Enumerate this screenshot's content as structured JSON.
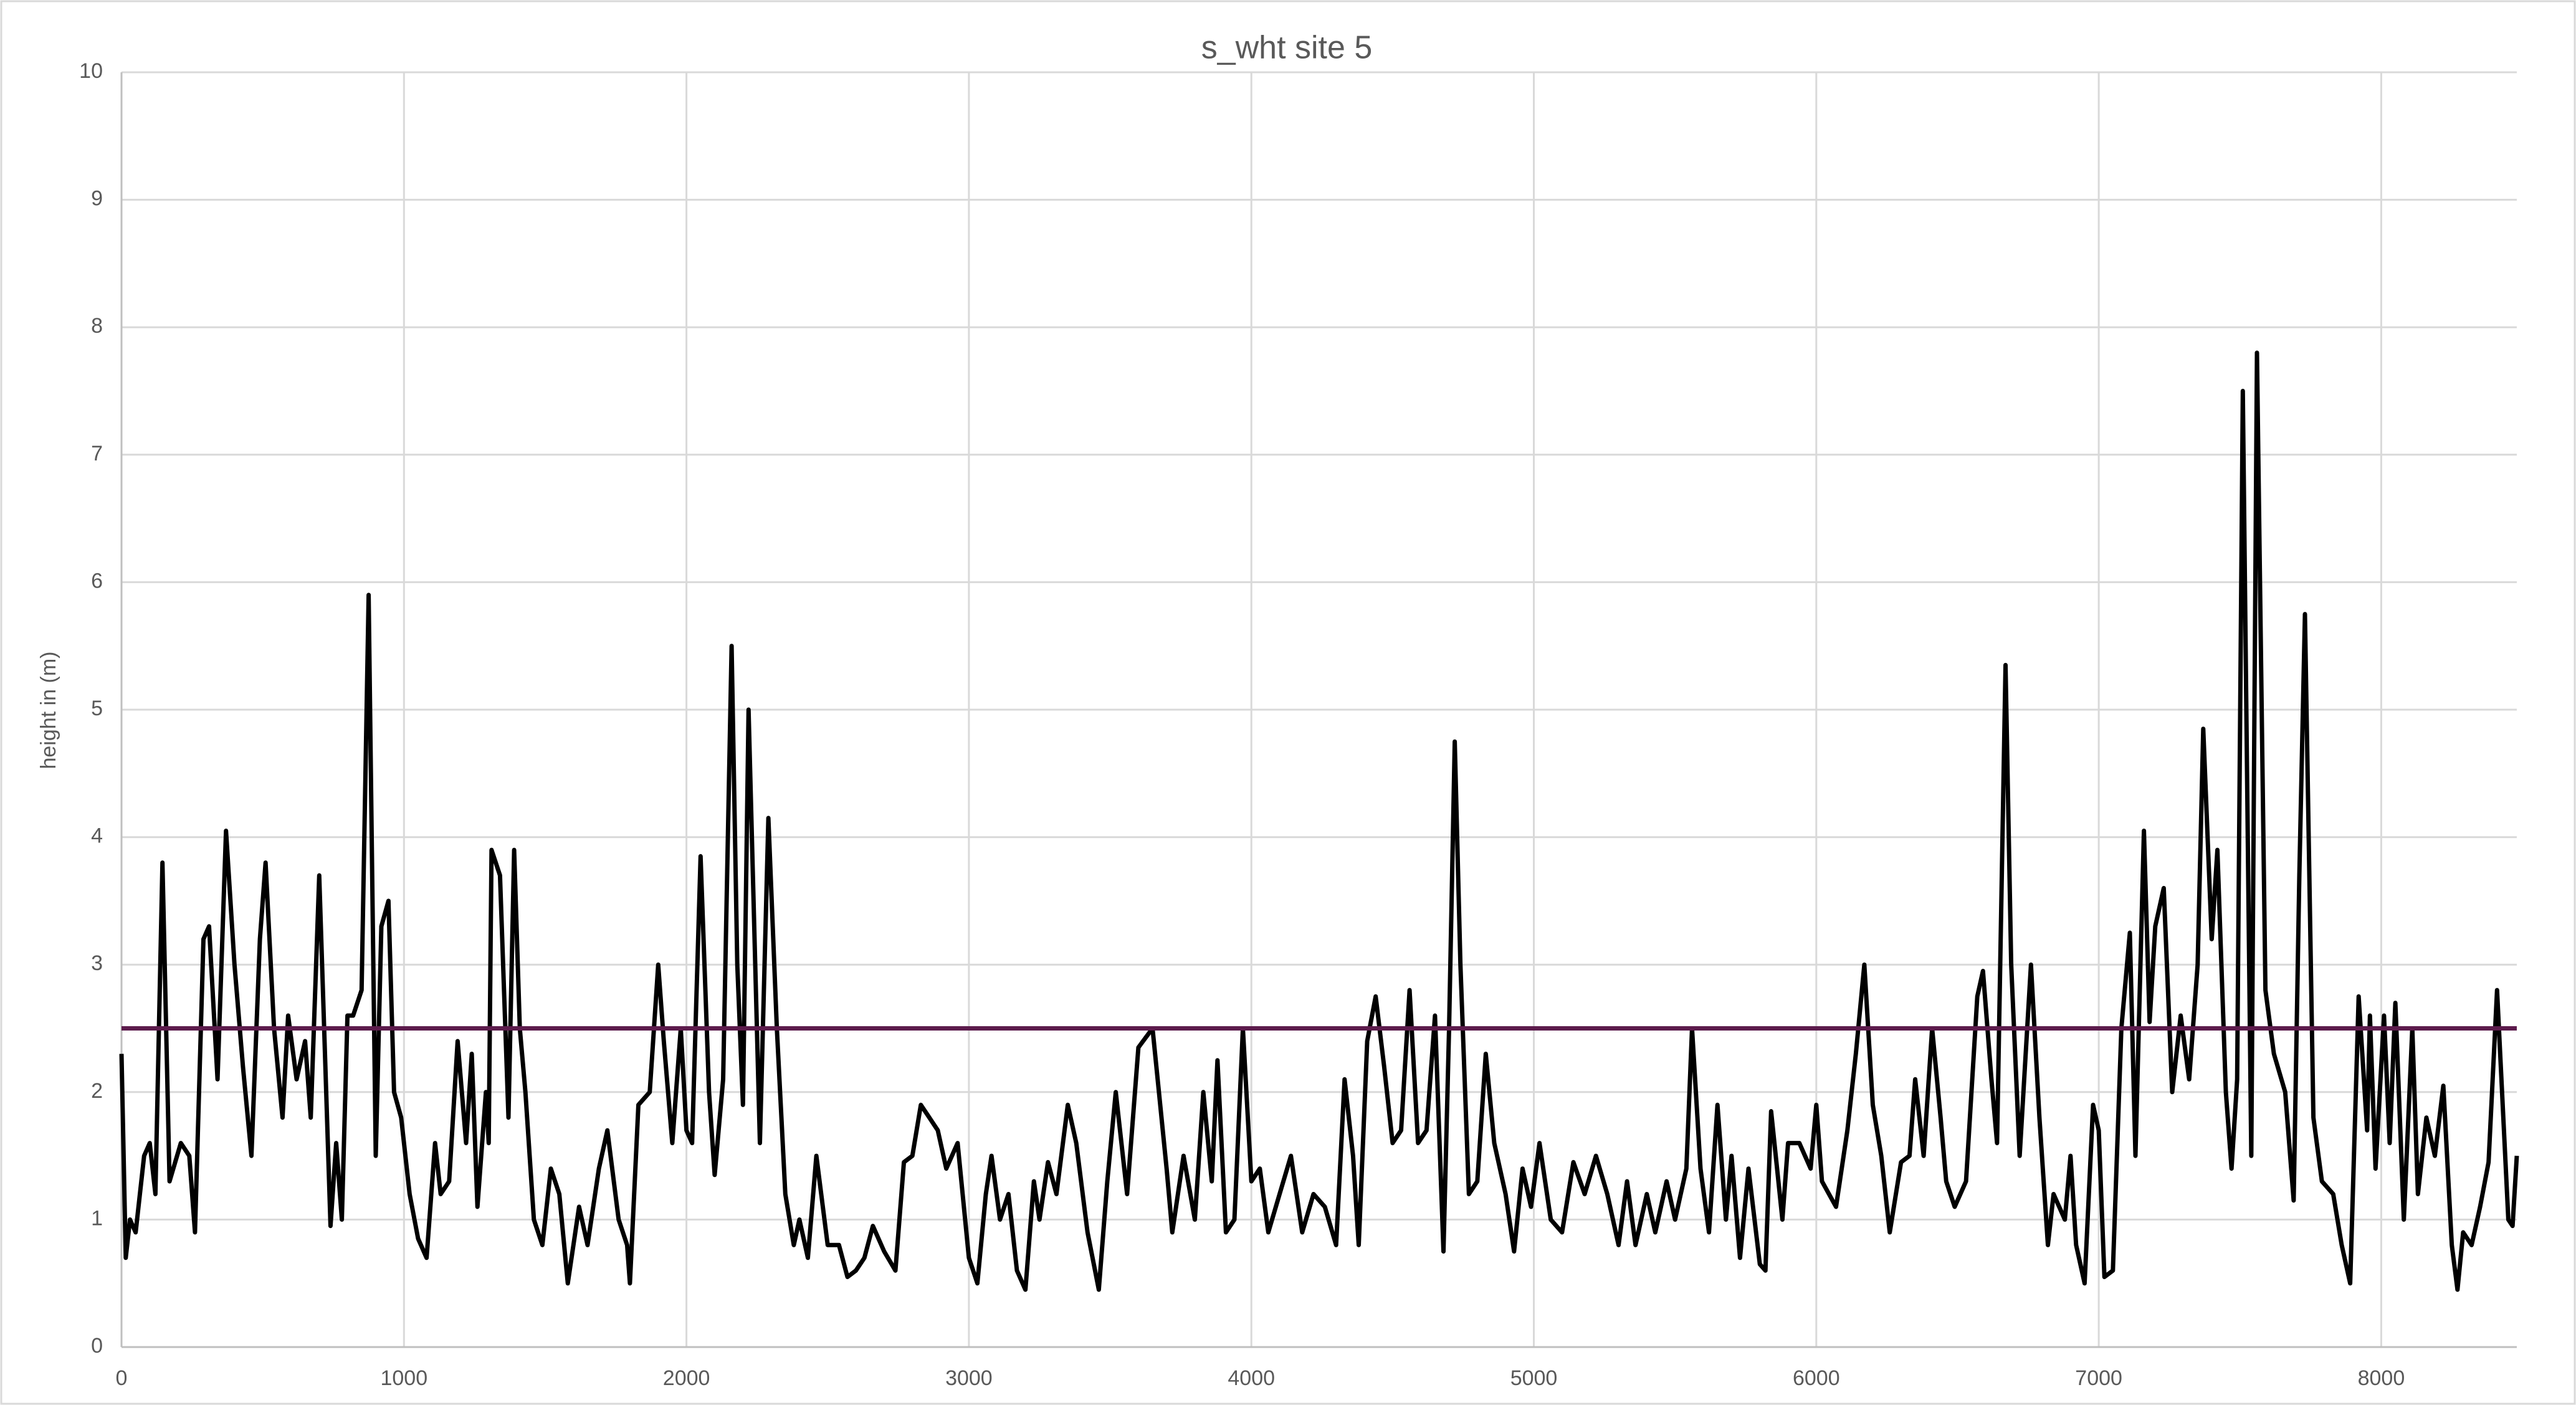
{
  "chart_data": {
    "type": "line",
    "title": "s_wht site 5",
    "y_label": "height in (m)",
    "xlim": [
      0,
      8480
    ],
    "xticks": [
      0,
      1000,
      2000,
      3000,
      4000,
      5000,
      6000,
      7000,
      8000
    ],
    "ylim": [
      0,
      10
    ],
    "yticks": [
      0,
      1,
      2,
      3,
      4,
      5,
      6,
      7,
      8,
      9,
      10
    ],
    "grid": true,
    "series": [
      {
        "color": "#000000",
        "x": [
          0,
          15,
          30,
          50,
          80,
          100,
          120,
          145,
          170,
          210,
          240,
          260,
          290,
          310,
          340,
          370,
          400,
          430,
          460,
          490,
          510,
          540,
          570,
          590,
          620,
          650,
          670,
          700,
          740,
          760,
          780,
          800,
          820,
          850,
          875,
          900,
          920,
          945,
          965,
          990,
          1020,
          1050,
          1080,
          1110,
          1130,
          1160,
          1190,
          1220,
          1240,
          1260,
          1290,
          1300,
          1310,
          1340,
          1370,
          1390,
          1410,
          1430,
          1460,
          1490,
          1520,
          1550,
          1580,
          1620,
          1650,
          1690,
          1720,
          1760,
          1790,
          1800,
          1830,
          1870,
          1900,
          1920,
          1950,
          1980,
          2000,
          2020,
          2050,
          2080,
          2100,
          2130,
          2160,
          2180,
          2200,
          2220,
          2260,
          2290,
          2320,
          2350,
          2380,
          2400,
          2430,
          2460,
          2500,
          2540,
          2570,
          2600,
          2630,
          2660,
          2700,
          2740,
          2770,
          2800,
          2830,
          2860,
          2890,
          2920,
          2960,
          3000,
          3030,
          3060,
          3080,
          3110,
          3140,
          3170,
          3200,
          3230,
          3250,
          3280,
          3310,
          3350,
          3380,
          3420,
          3460,
          3490,
          3520,
          3560,
          3600,
          3650,
          3700,
          3720,
          3760,
          3800,
          3830,
          3860,
          3880,
          3910,
          3940,
          3970,
          4000,
          4030,
          4060,
          4100,
          4140,
          4180,
          4220,
          4260,
          4300,
          4330,
          4360,
          4380,
          4410,
          4440,
          4470,
          4500,
          4530,
          4560,
          4590,
          4620,
          4650,
          4680,
          4700,
          4720,
          4740,
          4770,
          4800,
          4830,
          4860,
          4900,
          4930,
          4960,
          4990,
          5020,
          5060,
          5100,
          5140,
          5180,
          5220,
          5260,
          5300,
          5330,
          5360,
          5400,
          5430,
          5470,
          5500,
          5540,
          5560,
          5590,
          5620,
          5650,
          5680,
          5700,
          5730,
          5760,
          5800,
          5820,
          5840,
          5880,
          5900,
          5940,
          5980,
          6000,
          6020,
          6070,
          6110,
          6140,
          6170,
          6200,
          6230,
          6260,
          6300,
          6330,
          6350,
          6380,
          6410,
          6440,
          6460,
          6490,
          6530,
          6570,
          6590,
          6620,
          6640,
          6670,
          6690,
          6720,
          6760,
          6790,
          6820,
          6840,
          6880,
          6900,
          6920,
          6950,
          6980,
          7000,
          7020,
          7050,
          7080,
          7110,
          7130,
          7160,
          7180,
          7200,
          7230,
          7260,
          7290,
          7320,
          7350,
          7370,
          7400,
          7420,
          7450,
          7470,
          7490,
          7510,
          7540,
          7560,
          7590,
          7620,
          7660,
          7690,
          7710,
          7730,
          7760,
          7790,
          7830,
          7860,
          7890,
          7920,
          7950,
          7960,
          7980,
          8010,
          8030,
          8050,
          8080,
          8110,
          8130,
          8160,
          8190,
          8220,
          8250,
          8270,
          8290,
          8320,
          8350,
          8380,
          8410,
          8450,
          8465,
          8480
        ],
        "values": [
          2.3,
          0.7,
          1.0,
          0.9,
          1.5,
          1.6,
          1.2,
          3.8,
          1.3,
          1.6,
          1.5,
          0.9,
          3.2,
          3.3,
          2.1,
          4.05,
          3.0,
          2.2,
          1.5,
          3.2,
          3.8,
          2.5,
          1.8,
          2.6,
          2.1,
          2.4,
          1.8,
          3.7,
          0.95,
          1.6,
          1.0,
          2.6,
          2.6,
          2.8,
          5.9,
          1.5,
          3.3,
          3.5,
          2.0,
          1.8,
          1.2,
          0.85,
          0.7,
          1.6,
          1.2,
          1.3,
          2.4,
          1.6,
          2.3,
          1.1,
          2.0,
          1.6,
          3.9,
          3.7,
          1.8,
          3.9,
          2.5,
          2.0,
          1.0,
          0.8,
          1.4,
          1.2,
          0.5,
          1.1,
          0.8,
          1.4,
          1.7,
          1.0,
          0.8,
          0.5,
          1.9,
          2.0,
          3.0,
          2.4,
          1.6,
          2.5,
          1.7,
          1.6,
          3.85,
          2.0,
          1.35,
          2.1,
          5.5,
          3.0,
          1.9,
          5.0,
          1.6,
          4.15,
          2.5,
          1.2,
          0.8,
          1.0,
          0.7,
          1.5,
          0.8,
          0.8,
          0.55,
          0.6,
          0.7,
          0.95,
          0.75,
          0.6,
          1.45,
          1.5,
          1.9,
          1.8,
          1.7,
          1.4,
          1.6,
          0.7,
          0.5,
          1.2,
          1.5,
          1.0,
          1.2,
          0.6,
          0.45,
          1.3,
          1.0,
          1.45,
          1.2,
          1.9,
          1.6,
          0.9,
          0.45,
          1.3,
          2.0,
          1.2,
          2.35,
          2.5,
          1.4,
          0.9,
          1.5,
          1.0,
          2.0,
          1.3,
          2.25,
          0.9,
          1.0,
          2.5,
          1.3,
          1.4,
          0.9,
          1.2,
          1.5,
          0.9,
          1.2,
          1.1,
          0.8,
          2.1,
          1.5,
          0.8,
          2.4,
          2.75,
          2.2,
          1.6,
          1.7,
          2.8,
          1.6,
          1.7,
          2.6,
          0.75,
          2.5,
          4.75,
          3.0,
          1.2,
          1.3,
          2.3,
          1.6,
          1.2,
          0.75,
          1.4,
          1.1,
          1.6,
          1.0,
          0.9,
          1.45,
          1.2,
          1.5,
          1.2,
          0.8,
          1.3,
          0.8,
          1.2,
          0.9,
          1.3,
          1.0,
          1.4,
          2.5,
          1.4,
          0.9,
          1.9,
          1.0,
          1.5,
          0.7,
          1.4,
          0.65,
          0.6,
          1.85,
          1.0,
          1.6,
          1.6,
          1.4,
          1.9,
          1.3,
          1.1,
          1.7,
          2.3,
          3.0,
          1.9,
          1.5,
          0.9,
          1.45,
          1.5,
          2.1,
          1.5,
          2.5,
          1.8,
          1.3,
          1.1,
          1.3,
          2.75,
          2.95,
          2.1,
          1.6,
          5.35,
          3.0,
          1.5,
          3.0,
          1.8,
          0.8,
          1.2,
          1.0,
          1.5,
          0.8,
          0.5,
          1.9,
          1.7,
          0.55,
          0.6,
          2.5,
          3.25,
          1.5,
          4.05,
          2.55,
          3.3,
          3.6,
          2.0,
          2.6,
          2.1,
          3.0,
          4.85,
          3.2,
          3.9,
          2.0,
          1.4,
          2.1,
          7.5,
          1.5,
          7.8,
          2.8,
          2.3,
          2.0,
          1.15,
          3.7,
          5.75,
          1.8,
          1.3,
          1.2,
          0.8,
          0.5,
          2.75,
          1.7,
          2.6,
          1.4,
          2.6,
          1.6,
          2.7,
          1.0,
          2.5,
          1.2,
          1.8,
          1.5,
          2.05,
          0.8,
          0.45,
          0.9,
          0.8,
          1.1,
          1.45,
          2.8,
          1.0,
          0.95,
          1.5
        ]
      },
      {
        "color": "#5c1b4c",
        "x": [
          0,
          8480
        ],
        "values": [
          2.5,
          2.5
        ]
      }
    ]
  }
}
